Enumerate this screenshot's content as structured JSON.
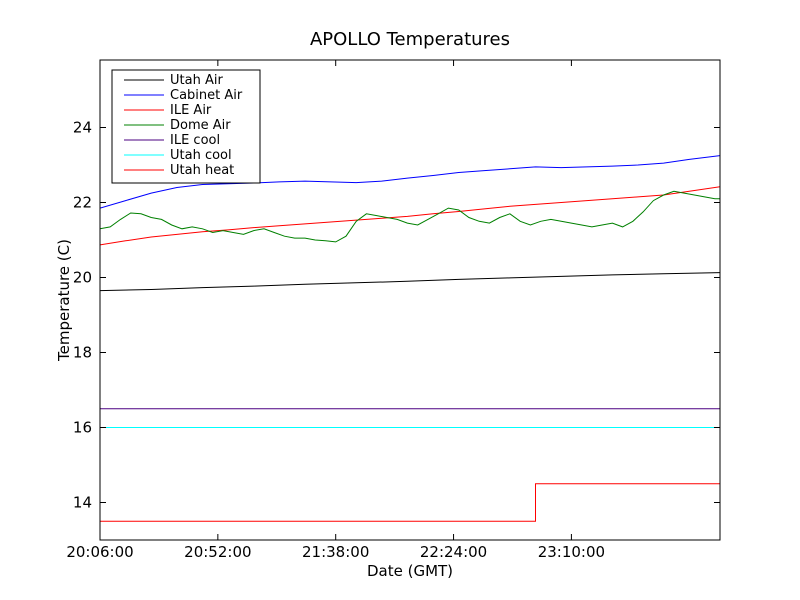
{
  "chart_data": {
    "type": "line",
    "title": "APOLLO Temperatures",
    "xlabel": "Date (GMT)",
    "ylabel": "Temperature (C)",
    "x_unit": "minutes since 20:06:00",
    "xlim": [
      0,
      242
    ],
    "ylim": [
      13,
      25.8
    ],
    "x_ticks": [
      {
        "value": 0,
        "label": "20:06:00"
      },
      {
        "value": 46,
        "label": "20:52:00"
      },
      {
        "value": 92,
        "label": "21:38:00"
      },
      {
        "value": 138,
        "label": "22:24:00"
      },
      {
        "value": 184,
        "label": "23:10:00"
      }
    ],
    "y_ticks": [
      {
        "value": 14,
        "label": "14"
      },
      {
        "value": 16,
        "label": "16"
      },
      {
        "value": 18,
        "label": "18"
      },
      {
        "value": 20,
        "label": "20"
      },
      {
        "value": 22,
        "label": "22"
      },
      {
        "value": 24,
        "label": "24"
      }
    ],
    "grid": false,
    "legend_position": "top-left",
    "series": [
      {
        "name": "Utah Air",
        "color": "#000000",
        "x": [
          0,
          20,
          40,
          60,
          80,
          100,
          120,
          140,
          160,
          180,
          200,
          220,
          242
        ],
        "y": [
          19.65,
          19.68,
          19.73,
          19.77,
          19.82,
          19.86,
          19.9,
          19.95,
          19.99,
          20.03,
          20.07,
          20.1,
          20.13
        ]
      },
      {
        "name": "Cabinet Air",
        "color": "#0000ff",
        "x": [
          0,
          10,
          20,
          30,
          40,
          50,
          60,
          70,
          80,
          90,
          100,
          110,
          120,
          130,
          140,
          150,
          160,
          170,
          180,
          190,
          200,
          210,
          220,
          230,
          242
        ],
        "y": [
          21.85,
          22.05,
          22.25,
          22.4,
          22.48,
          22.5,
          22.52,
          22.55,
          22.57,
          22.55,
          22.53,
          22.57,
          22.65,
          22.72,
          22.8,
          22.85,
          22.9,
          22.95,
          22.93,
          22.95,
          22.97,
          23.0,
          23.05,
          23.15,
          23.25
        ]
      },
      {
        "name": "ILE Air",
        "color": "#ff0000",
        "x": [
          0,
          10,
          20,
          30,
          40,
          50,
          60,
          70,
          80,
          90,
          100,
          110,
          120,
          130,
          140,
          150,
          160,
          170,
          180,
          190,
          200,
          210,
          220,
          230,
          242
        ],
        "y": [
          20.87,
          20.98,
          21.08,
          21.15,
          21.22,
          21.27,
          21.33,
          21.38,
          21.43,
          21.48,
          21.53,
          21.58,
          21.63,
          21.7,
          21.76,
          21.83,
          21.9,
          21.95,
          22.0,
          22.05,
          22.1,
          22.15,
          22.2,
          22.3,
          22.42
        ]
      },
      {
        "name": "Dome Air",
        "color": "#008000",
        "x": [
          0,
          4,
          8,
          12,
          16,
          20,
          24,
          28,
          32,
          36,
          40,
          44,
          48,
          52,
          56,
          60,
          64,
          68,
          72,
          76,
          80,
          84,
          88,
          92,
          96,
          100,
          104,
          108,
          112,
          116,
          120,
          124,
          128,
          132,
          136,
          140,
          144,
          148,
          152,
          156,
          160,
          164,
          168,
          172,
          176,
          180,
          184,
          188,
          192,
          196,
          200,
          204,
          208,
          212,
          216,
          220,
          224,
          228,
          232,
          236,
          240,
          242
        ],
        "y": [
          21.3,
          21.35,
          21.55,
          21.72,
          21.7,
          21.6,
          21.55,
          21.4,
          21.3,
          21.35,
          21.3,
          21.2,
          21.25,
          21.2,
          21.15,
          21.25,
          21.3,
          21.2,
          21.1,
          21.05,
          21.05,
          21.0,
          20.98,
          20.95,
          21.1,
          21.5,
          21.7,
          21.65,
          21.6,
          21.55,
          21.45,
          21.4,
          21.55,
          21.7,
          21.85,
          21.8,
          21.6,
          21.5,
          21.45,
          21.6,
          21.7,
          21.5,
          21.4,
          21.5,
          21.55,
          21.5,
          21.45,
          21.4,
          21.35,
          21.4,
          21.45,
          21.35,
          21.5,
          21.75,
          22.05,
          22.2,
          22.3,
          22.25,
          22.2,
          22.15,
          22.1,
          22.1
        ]
      },
      {
        "name": "ILE cool",
        "color": "#4b0082",
        "x": [
          0,
          242
        ],
        "y": [
          16.5,
          16.5
        ]
      },
      {
        "name": "Utah cool",
        "color": "#00ffff",
        "x": [
          0,
          242
        ],
        "y": [
          16.0,
          16.0
        ]
      },
      {
        "name": "Utah heat",
        "color": "#ff0000",
        "x": [
          0,
          170,
          170,
          242
        ],
        "y": [
          13.5,
          13.5,
          14.5,
          14.5
        ]
      }
    ]
  }
}
